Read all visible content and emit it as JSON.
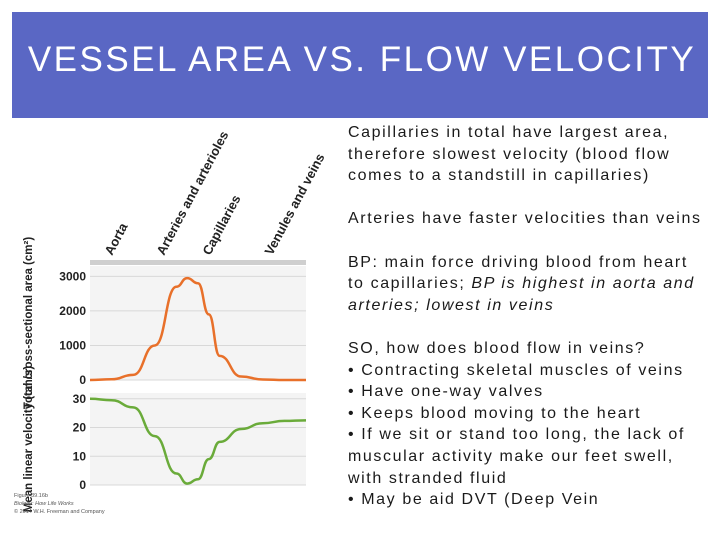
{
  "slide": {
    "title": "VESSEL AREA VS. FLOW VELOCITY",
    "paragraphs": [
      "Capillaries in total have largest area, therefore slowest velocity (blood flow comes to a standstill in capillaries)",
      "Arteries have faster velocities than veins"
    ],
    "bp_text": "BP: main force driving blood from heart to capillaries; ",
    "bp_italic": "BP is highest in aorta and arteries; lowest in veins",
    "so_question": "SO, how does blood flow in veins?",
    "bullets": [
      "• Contracting skeletal muscles of veins",
      "• Have one-way valves",
      "• Keeps blood moving to the heart",
      "• If we sit or stand too long, the lack of muscular activity make our feet swell, with stranded fluid",
      "• May be aid DVT (Deep Vein"
    ]
  },
  "figure": {
    "credit": [
      "Figure 39.16b",
      "Biology: How Life Works",
      "© 2014 W.H. Freeman and Company"
    ]
  },
  "chart_data": [
    {
      "type": "line",
      "title": "",
      "categories": [
        "Aorta",
        "Arteries and arterioles",
        "Capillaries",
        "Venules and veins"
      ],
      "ylabel": "Total cross-sectional area (cm²)",
      "yticks": [
        0,
        1000,
        2000,
        3000
      ],
      "ylim": [
        0,
        3300
      ],
      "x": [
        0,
        0.1,
        0.2,
        0.3,
        0.4,
        0.45,
        0.5,
        0.55,
        0.6,
        0.7,
        0.8,
        0.9,
        1.0
      ],
      "series": [
        {
          "values": [
            0,
            20,
            150,
            1000,
            2700,
            2950,
            2800,
            1900,
            700,
            100,
            15,
            0,
            0
          ],
          "color": "#e8702a"
        }
      ]
    },
    {
      "type": "line",
      "title": "",
      "categories": [
        "Aorta",
        "Arteries and arterioles",
        "Capillaries",
        "Venules and veins"
      ],
      "ylabel": "Mean linear velocity (cm/s)",
      "yticks": [
        0,
        10,
        20,
        30
      ],
      "ylim": [
        0,
        32
      ],
      "x": [
        0,
        0.1,
        0.2,
        0.3,
        0.4,
        0.45,
        0.5,
        0.55,
        0.6,
        0.7,
        0.8,
        0.9,
        1.0
      ],
      "series": [
        {
          "values": [
            30,
            29.5,
            27,
            17,
            4,
            0.5,
            2,
            9,
            15,
            19.5,
            21.5,
            22.3,
            22.5
          ],
          "color": "#6aab3a"
        }
      ]
    }
  ]
}
